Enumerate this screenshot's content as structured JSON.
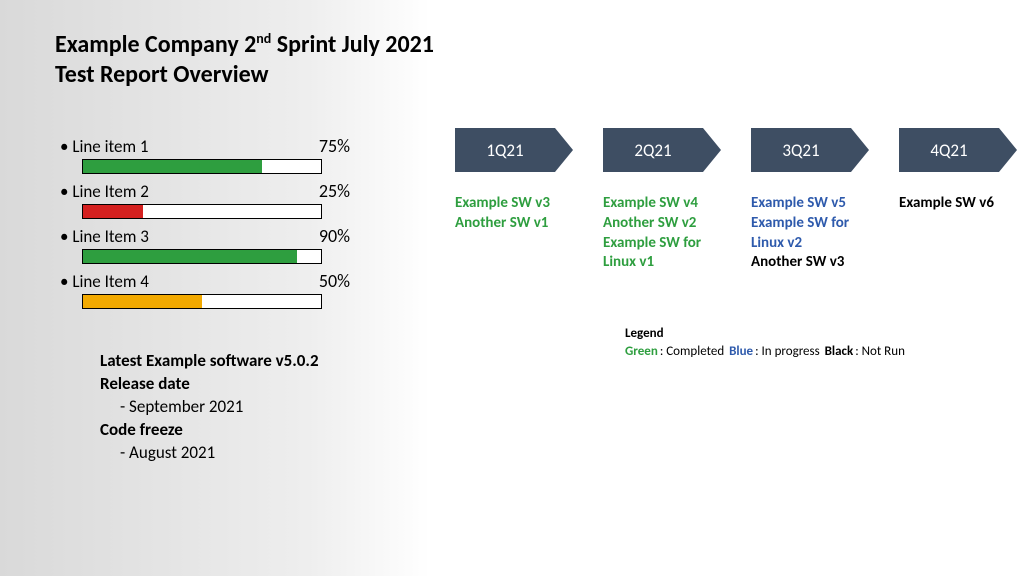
{
  "title_line1_pre": "Example Company  2",
  "title_line1_sup": "nd",
  "title_line1_post": " Sprint July 2021",
  "title_line2": "Test Report Overview",
  "colors": {
    "green": "#2e9e3f",
    "red": "#d4201f",
    "orange": "#f2a900",
    "blue": "#2e5aac",
    "black": "#000000",
    "arrow": "#3e4e63",
    "bar_border": "#000000",
    "bar_bg": "#ffffff"
  },
  "progress": [
    {
      "label": "Line item 1",
      "pct": 75,
      "color": "#2e9e3f"
    },
    {
      "label": "Line Item 2",
      "pct": 25,
      "color": "#d4201f"
    },
    {
      "label": "Line Item 3",
      "pct": 90,
      "color": "#2e9e3f"
    },
    {
      "label": "Line Item 4",
      "pct": 50,
      "color": "#f2a900"
    }
  ],
  "release": {
    "h1": "Latest Example software v5.0.2",
    "h2": "Release date",
    "d1": "-    September 2021",
    "h3": "Code freeze",
    "d2": "-    August 2021"
  },
  "quarters": [
    {
      "label": "1Q21",
      "items": [
        {
          "text": "Example SW v3",
          "color": "#2e9e3f"
        },
        {
          "text": "Another SW v1",
          "color": "#2e9e3f"
        }
      ]
    },
    {
      "label": "2Q21",
      "items": [
        {
          "text": "Example SW v4",
          "color": "#2e9e3f"
        },
        {
          "text": "Another SW v2",
          "color": "#2e9e3f"
        },
        {
          "text": "Example SW for",
          "color": "#2e9e3f"
        },
        {
          "text": "Linux v1",
          "color": "#2e9e3f"
        }
      ]
    },
    {
      "label": "3Q21",
      "items": [
        {
          "text": "Example SW v5",
          "color": "#2e5aac"
        },
        {
          "text": "Example SW for",
          "color": "#2e5aac"
        },
        {
          "text": "Linux v2",
          "color": "#2e5aac"
        },
        {
          "text": "Another SW v3",
          "color": "#000000"
        }
      ]
    },
    {
      "label": "4Q21",
      "items": [
        {
          "text": "Example SW v6",
          "color": "#000000"
        }
      ]
    }
  ],
  "legend": {
    "title": "Legend",
    "items": [
      {
        "label": "Green",
        "color": "#2e9e3f",
        "meaning": ": Completed "
      },
      {
        "label": "Blue",
        "color": "#2e5aac",
        "meaning": ": In progress "
      },
      {
        "label": "Black",
        "color": "#000000",
        "meaning": ": Not Run"
      }
    ]
  }
}
